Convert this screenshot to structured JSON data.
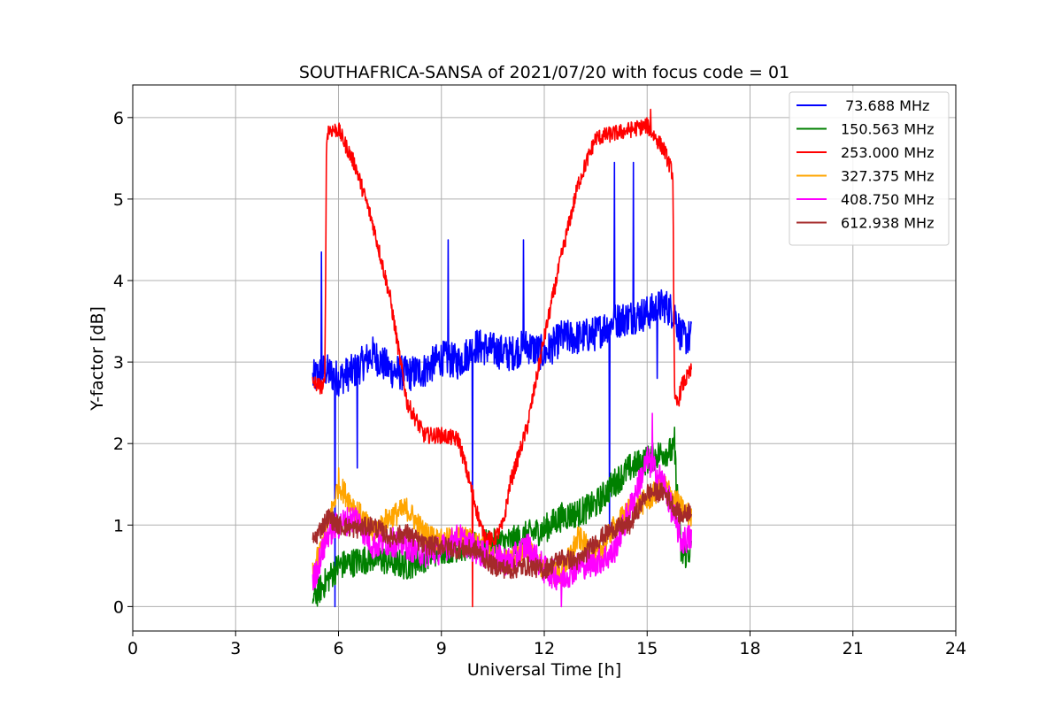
{
  "chart_data": {
    "type": "line",
    "title": "SOUTHAFRICA-SANSA of 2021/07/20 with focus code = 01",
    "xlabel": "Universal Time [h]",
    "ylabel": "Y-factor [dB]",
    "xlim": [
      0,
      24
    ],
    "ylim": [
      -0.3,
      6.4
    ],
    "xticks": [
      0,
      3,
      6,
      9,
      12,
      15,
      18,
      21,
      24
    ],
    "yticks": [
      0,
      1,
      2,
      3,
      4,
      5,
      6
    ],
    "grid": true,
    "legend_position": "top-right",
    "series": [
      {
        "name": " 73.688 MHz",
        "color": "#0000ff",
        "noise": 0.22,
        "x": [
          5.25,
          5.6,
          6.0,
          6.5,
          7.0,
          7.5,
          8.0,
          8.5,
          9.0,
          9.5,
          10.0,
          10.5,
          11.0,
          11.5,
          12.0,
          12.5,
          13.0,
          13.5,
          14.0,
          14.5,
          15.0,
          15.5,
          15.8,
          16.0,
          16.3
        ],
        "values": [
          2.8,
          2.9,
          2.8,
          2.9,
          3.1,
          2.9,
          2.85,
          2.9,
          3.05,
          3.0,
          3.2,
          3.15,
          3.1,
          3.2,
          3.1,
          3.3,
          3.3,
          3.35,
          3.5,
          3.55,
          3.6,
          3.7,
          3.6,
          3.3,
          3.3
        ],
        "spikes": [
          [
            5.5,
            4.35
          ],
          [
            5.9,
            0.0
          ],
          [
            6.55,
            1.7
          ],
          [
            9.2,
            4.5
          ],
          [
            9.9,
            1.1
          ],
          [
            11.4,
            4.5
          ],
          [
            13.9,
            0.9
          ],
          [
            14.05,
            5.45
          ],
          [
            14.6,
            5.45
          ],
          [
            15.3,
            2.8
          ]
        ]
      },
      {
        "name": "150.563 MHz",
        "color": "#008000",
        "noise": 0.18,
        "x": [
          5.25,
          6.0,
          7.0,
          8.0,
          9.0,
          10.0,
          11.0,
          12.0,
          12.5,
          13.0,
          13.5,
          14.0,
          14.5,
          15.0,
          15.5,
          15.8,
          16.0,
          16.3
        ],
        "values": [
          0.1,
          0.5,
          0.6,
          0.5,
          0.7,
          0.75,
          0.8,
          0.95,
          1.1,
          1.15,
          1.25,
          1.5,
          1.7,
          1.8,
          1.9,
          1.9,
          0.6,
          0.7
        ],
        "spikes": [
          [
            15.8,
            2.2
          ]
        ]
      },
      {
        "name": "253.000 MHz",
        "color": "#ff0000",
        "noise": 0.1,
        "x": [
          5.25,
          5.5,
          5.6,
          5.65,
          5.7,
          6.0,
          6.5,
          7.0,
          7.5,
          8.0,
          8.5,
          9.0,
          9.5,
          9.9,
          10.2,
          10.5,
          10.8,
          11.0,
          11.5,
          12.0,
          12.5,
          13.0,
          13.5,
          14.0,
          14.5,
          15.0,
          15.5,
          15.75,
          15.8,
          15.9,
          16.0,
          16.3
        ],
        "values": [
          2.75,
          2.7,
          2.7,
          5.7,
          5.85,
          5.85,
          5.4,
          4.7,
          3.8,
          2.5,
          2.1,
          2.1,
          2.05,
          1.4,
          0.9,
          0.8,
          1.0,
          1.5,
          2.2,
          3.3,
          4.3,
          5.2,
          5.75,
          5.8,
          5.85,
          5.9,
          5.6,
          5.3,
          2.5,
          2.5,
          2.7,
          2.9
        ],
        "spikes": [
          [
            9.9,
            0.0
          ],
          [
            15.1,
            6.1
          ]
        ]
      },
      {
        "name": "327.375 MHz",
        "color": "#ffa500",
        "noise": 0.15,
        "x": [
          5.25,
          5.7,
          6.0,
          6.5,
          7.0,
          7.5,
          8.0,
          8.5,
          9.0,
          9.5,
          10.0,
          10.5,
          11.0,
          11.5,
          12.0,
          12.5,
          13.0,
          13.5,
          14.0,
          14.5,
          15.0,
          15.5,
          16.0,
          16.3
        ],
        "values": [
          0.4,
          1.0,
          1.5,
          1.2,
          0.9,
          1.1,
          1.2,
          0.9,
          0.8,
          0.85,
          0.8,
          0.6,
          0.55,
          0.7,
          0.45,
          0.4,
          0.85,
          0.6,
          0.95,
          1.2,
          1.3,
          1.5,
          1.2,
          1.1
        ],
        "spikes": [
          [
            6.0,
            1.7
          ]
        ]
      },
      {
        "name": "408.750 MHz",
        "color": "#ff00ff",
        "noise": 0.18,
        "x": [
          5.25,
          5.7,
          6.0,
          6.5,
          7.0,
          7.5,
          8.0,
          8.5,
          9.0,
          9.5,
          10.0,
          10.5,
          11.0,
          11.5,
          12.0,
          12.5,
          13.0,
          13.5,
          14.0,
          14.5,
          15.0,
          15.5,
          16.0,
          16.3
        ],
        "values": [
          0.3,
          0.9,
          1.0,
          1.1,
          0.75,
          0.8,
          0.75,
          0.65,
          0.7,
          0.85,
          0.7,
          0.6,
          0.55,
          0.75,
          0.45,
          0.35,
          0.5,
          0.55,
          0.65,
          1.2,
          1.8,
          1.5,
          0.8,
          0.85
        ],
        "spikes": [
          [
            15.15,
            2.37
          ],
          [
            12.5,
            0.0
          ]
        ]
      },
      {
        "name": "612.938 MHz",
        "color": "#a52a2a",
        "noise": 0.12,
        "x": [
          5.25,
          5.7,
          6.0,
          6.5,
          7.0,
          7.5,
          8.0,
          8.5,
          9.0,
          9.5,
          10.0,
          10.5,
          11.0,
          11.5,
          12.0,
          12.5,
          13.0,
          13.5,
          14.0,
          14.5,
          15.0,
          15.5,
          16.0,
          16.3
        ],
        "values": [
          0.8,
          1.1,
          1.0,
          0.95,
          1.0,
          0.85,
          0.9,
          0.75,
          0.75,
          0.7,
          0.7,
          0.5,
          0.45,
          0.5,
          0.45,
          0.6,
          0.55,
          0.8,
          0.95,
          1.0,
          1.4,
          1.4,
          1.1,
          1.2
        ],
        "spikes": []
      }
    ]
  }
}
